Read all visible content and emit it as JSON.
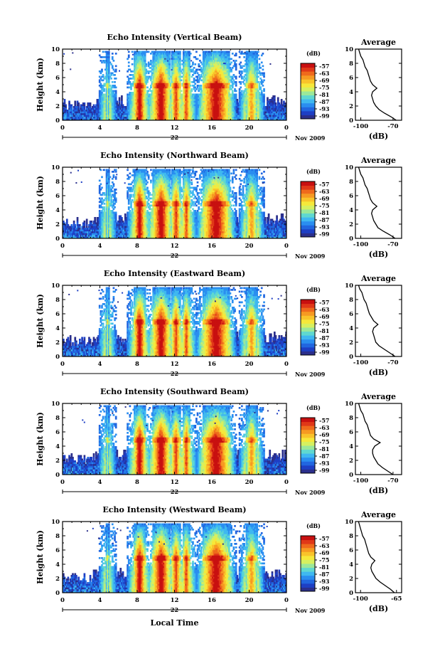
{
  "panels": [
    {
      "title": "Echo Intensity (Vertical Beam)",
      "date_label": "22",
      "avg_xticks": [
        "-100",
        "-70"
      ],
      "avg_xlim": [
        -105,
        -62
      ]
    },
    {
      "title": "Echo Intensity (Northward Beam)",
      "date_label": "22",
      "avg_xticks": [
        "-100",
        "-70"
      ],
      "avg_xlim": [
        -105,
        -62
      ]
    },
    {
      "title": "Echo Intensity (Eastward Beam)",
      "date_label": "22",
      "avg_xticks": [
        "-100",
        "-70"
      ],
      "avg_xlim": [
        -105,
        -62
      ]
    },
    {
      "title": "Echo Intensity (Southward Beam)",
      "date_label": "22",
      "avg_xticks": [
        "-100",
        "-70"
      ],
      "avg_xlim": [
        -105,
        -62
      ]
    },
    {
      "title": "Echo Intensity (Westward Beam)",
      "date_label": "22",
      "avg_xticks": [
        "-100",
        "-65"
      ],
      "avg_xlim": [
        -105,
        -60
      ]
    }
  ],
  "labels": {
    "ylabel": "Height (km)",
    "xlabel": "Local Time",
    "month_year": "Nov 2009",
    "cb_unit": "(dB)",
    "avg_title": "Average",
    "avg_xlabel": "(dB)"
  },
  "axes": {
    "x_ticks": [
      "0",
      "4",
      "8",
      "12",
      "16",
      "20",
      "0"
    ],
    "y_ticks": [
      "0",
      "2",
      "4",
      "6",
      "8",
      "10"
    ],
    "avg_y_ticks": [
      "0",
      "2",
      "4",
      "6",
      "8",
      "10"
    ]
  },
  "colorbar": {
    "ticks": [
      "-57",
      "-63",
      "-69",
      "-75",
      "-81",
      "-87",
      "-93",
      "-99"
    ],
    "colors": [
      "#2b2f8c",
      "#1e3fc4",
      "#2166e0",
      "#2a8ef0",
      "#3fb8f0",
      "#5fd8d0",
      "#9be89a",
      "#d6f060",
      "#f6e83a",
      "#f9c32a",
      "#f69a22",
      "#ef6a1c",
      "#e03818",
      "#c81010"
    ]
  },
  "chart_data": {
    "type": "heatmap",
    "x_units": "Local Time (h)",
    "xlim": [
      0,
      24
    ],
    "ylim": [
      0,
      10
    ],
    "value_range_dB": [
      -99,
      -57
    ],
    "precip_events": [
      {
        "start": 4.6,
        "end": 4.9,
        "peak_dB": -81
      },
      {
        "start": 7.6,
        "end": 8.8,
        "peak_dB": -57
      },
      {
        "start": 9.6,
        "end": 11.4,
        "peak_dB": -57
      },
      {
        "start": 11.6,
        "end": 12.6,
        "peak_dB": -63
      },
      {
        "start": 12.8,
        "end": 13.6,
        "peak_dB": -63
      },
      {
        "start": 15.0,
        "end": 17.8,
        "peak_dB": -57
      },
      {
        "start": 19.6,
        "end": 20.8,
        "peak_dB": -69
      }
    ],
    "melting_layer_km": 4.8,
    "average_profile": {
      "height_km": [
        0,
        0.5,
        1,
        1.5,
        2,
        2.5,
        3,
        3.5,
        4,
        4.5,
        5,
        5.5,
        6,
        6.5,
        7,
        7.5,
        8,
        8.5,
        9,
        9.5,
        10
      ],
      "vertical_dB": [
        -67,
        -72,
        -78,
        -83,
        -86,
        -88,
        -89,
        -90,
        -89,
        -85,
        -89,
        -91,
        -92,
        -93,
        -94,
        -96,
        -97,
        -98,
        -100,
        -101,
        -102
      ],
      "northward_dB": [
        -68,
        -73,
        -79,
        -84,
        -86,
        -88,
        -89,
        -90,
        -89,
        -85,
        -89,
        -91,
        -92,
        -93,
        -94,
        -96,
        -97,
        -98,
        -100,
        -101,
        -102
      ],
      "eastward_dB": [
        -68,
        -73,
        -78,
        -83,
        -86,
        -87,
        -88,
        -89,
        -88,
        -84,
        -88,
        -90,
        -92,
        -93,
        -94,
        -95,
        -97,
        -98,
        -99,
        -101,
        -102
      ],
      "southward_dB": [
        -70,
        -75,
        -80,
        -84,
        -86,
        -88,
        -89,
        -89,
        -87,
        -82,
        -88,
        -91,
        -92,
        -93,
        -94,
        -96,
        -97,
        -98,
        -100,
        -101,
        -102
      ],
      "westward_dB": [
        -67,
        -71,
        -76,
        -81,
        -85,
        -87,
        -89,
        -90,
        -89,
        -86,
        -90,
        -92,
        -93,
        -94,
        -95,
        -96,
        -98,
        -99,
        -100,
        -101,
        -102
      ]
    }
  }
}
